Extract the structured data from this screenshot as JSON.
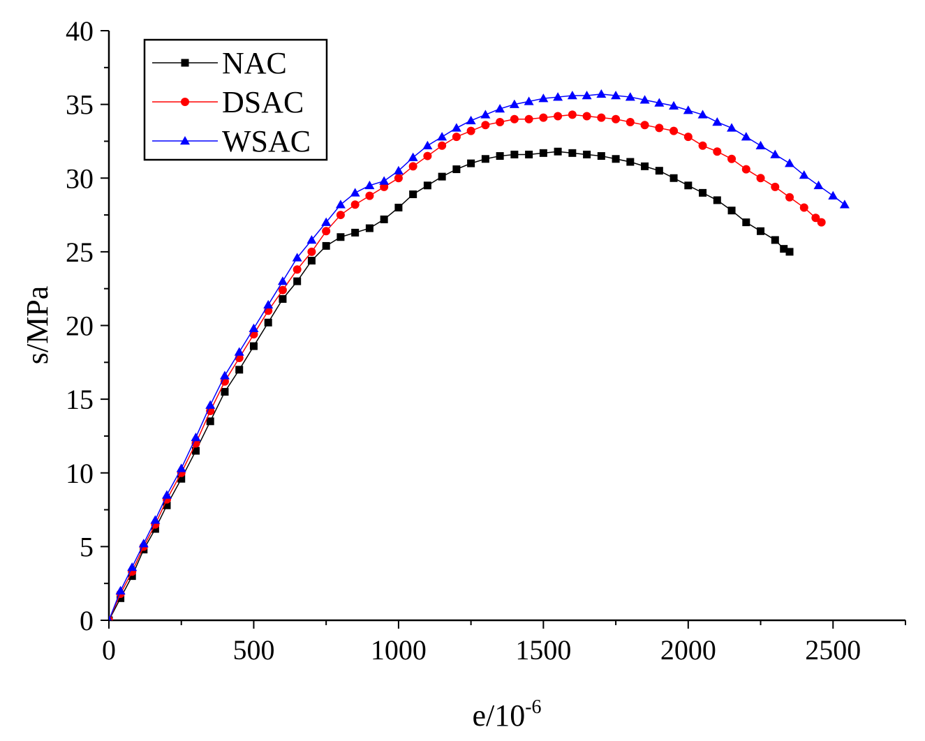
{
  "chart_data": {
    "type": "line",
    "title": "",
    "xlabel": "e/10",
    "xlabel_superscript": "-6",
    "ylabel": "s/MPa",
    "xlim": [
      0,
      2750
    ],
    "ylim": [
      0,
      40
    ],
    "x_ticks": [
      0,
      500,
      1000,
      1500,
      2000,
      2500
    ],
    "y_ticks": [
      0,
      5,
      10,
      15,
      20,
      25,
      30,
      35,
      40
    ],
    "grid": false,
    "legend_position": "top-left",
    "series": [
      {
        "name": "NAC",
        "color": "#000000",
        "marker": "square",
        "x": [
          0,
          40,
          80,
          120,
          160,
          200,
          250,
          300,
          350,
          400,
          450,
          500,
          550,
          600,
          650,
          700,
          750,
          800,
          850,
          900,
          950,
          1000,
          1050,
          1100,
          1150,
          1200,
          1250,
          1300,
          1350,
          1400,
          1450,
          1500,
          1550,
          1600,
          1650,
          1700,
          1750,
          1800,
          1850,
          1900,
          1950,
          2000,
          2050,
          2100,
          2150,
          2200,
          2250,
          2300,
          2330,
          2350
        ],
        "y": [
          0,
          1.5,
          3.0,
          4.8,
          6.2,
          7.8,
          9.6,
          11.5,
          13.5,
          15.5,
          17.0,
          18.6,
          20.2,
          21.8,
          23.0,
          24.4,
          25.4,
          26.0,
          26.3,
          26.6,
          27.2,
          28.0,
          28.9,
          29.5,
          30.1,
          30.6,
          31.0,
          31.3,
          31.5,
          31.6,
          31.6,
          31.7,
          31.8,
          31.7,
          31.6,
          31.5,
          31.3,
          31.1,
          30.8,
          30.5,
          30.0,
          29.5,
          29.0,
          28.5,
          27.8,
          27.0,
          26.4,
          25.8,
          25.2,
          25.0
        ]
      },
      {
        "name": "DSAC",
        "color": "#ff0000",
        "marker": "circle",
        "x": [
          0,
          40,
          80,
          120,
          160,
          200,
          250,
          300,
          350,
          400,
          450,
          500,
          550,
          600,
          650,
          700,
          750,
          800,
          850,
          900,
          950,
          1000,
          1050,
          1100,
          1150,
          1200,
          1250,
          1300,
          1350,
          1400,
          1450,
          1500,
          1550,
          1600,
          1650,
          1700,
          1750,
          1800,
          1850,
          1900,
          1950,
          2000,
          2050,
          2100,
          2150,
          2200,
          2250,
          2300,
          2350,
          2400,
          2440,
          2460
        ],
        "y": [
          0,
          1.8,
          3.3,
          5.0,
          6.5,
          8.2,
          10.0,
          12.0,
          14.2,
          16.2,
          17.8,
          19.4,
          21.0,
          22.4,
          23.8,
          25.0,
          26.4,
          27.5,
          28.2,
          28.8,
          29.4,
          30.0,
          30.8,
          31.5,
          32.2,
          32.8,
          33.2,
          33.6,
          33.8,
          34.0,
          34.0,
          34.1,
          34.2,
          34.3,
          34.2,
          34.1,
          34.0,
          33.8,
          33.6,
          33.4,
          33.2,
          32.8,
          32.2,
          31.8,
          31.3,
          30.6,
          30.0,
          29.4,
          28.7,
          28.0,
          27.3,
          27.0
        ]
      },
      {
        "name": "WSAC",
        "color": "#0000ff",
        "marker": "triangle",
        "x": [
          0,
          40,
          80,
          120,
          160,
          200,
          250,
          300,
          350,
          400,
          450,
          500,
          550,
          600,
          650,
          700,
          750,
          800,
          850,
          900,
          950,
          1000,
          1050,
          1100,
          1150,
          1200,
          1250,
          1300,
          1350,
          1400,
          1450,
          1500,
          1550,
          1600,
          1650,
          1700,
          1750,
          1800,
          1850,
          1900,
          1950,
          2000,
          2050,
          2100,
          2150,
          2200,
          2250,
          2300,
          2350,
          2400,
          2450,
          2500,
          2540
        ],
        "y": [
          0,
          2.0,
          3.6,
          5.2,
          6.8,
          8.5,
          10.3,
          12.4,
          14.6,
          16.6,
          18.2,
          19.8,
          21.4,
          23.0,
          24.6,
          25.8,
          27.0,
          28.2,
          29.0,
          29.5,
          29.8,
          30.5,
          31.4,
          32.2,
          32.8,
          33.4,
          33.9,
          34.3,
          34.7,
          35.0,
          35.2,
          35.4,
          35.5,
          35.6,
          35.6,
          35.7,
          35.6,
          35.5,
          35.3,
          35.1,
          34.9,
          34.6,
          34.3,
          33.8,
          33.4,
          32.8,
          32.2,
          31.6,
          31.0,
          30.2,
          29.5,
          28.8,
          28.2
        ]
      }
    ]
  }
}
